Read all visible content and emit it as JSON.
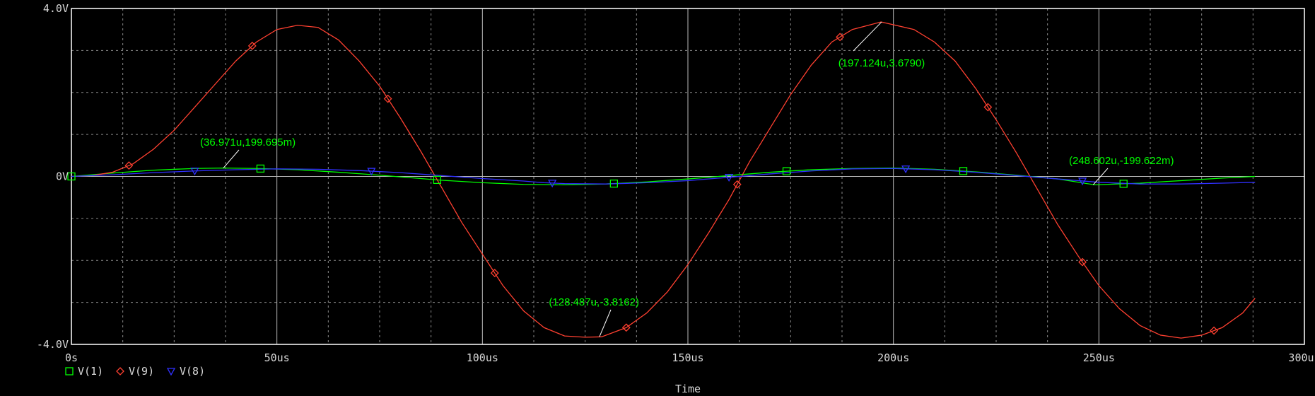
{
  "chart_data": {
    "type": "line",
    "title": "",
    "xlabel": "Time",
    "ylabel": "",
    "xlim": [
      0,
      300
    ],
    "ylim": [
      -4,
      4
    ],
    "x_unit": "us",
    "y_unit": "V",
    "x_ticks": [
      "0s",
      "50us",
      "100us",
      "150us",
      "200us",
      "250us",
      "300us"
    ],
    "y_ticks": [
      "4.0V",
      "0V",
      "-4.0V"
    ],
    "grid": true,
    "grid_style": "dotted",
    "legend_position": "bottom-left",
    "background": "#000000",
    "axis_color": "#ffffff",
    "series": [
      {
        "name": "V(1)",
        "color": "#00ff00",
        "marker": "square",
        "x": [
          0,
          10,
          20,
          30,
          37,
          45,
          55,
          65,
          75,
          85,
          90,
          100,
          110,
          120,
          130,
          140,
          150,
          160,
          170,
          180,
          190,
          200,
          210,
          220,
          230,
          240,
          249,
          260,
          270,
          280,
          288
        ],
        "y": [
          0,
          0.08,
          0.15,
          0.19,
          0.2,
          0.19,
          0.16,
          0.1,
          0.03,
          -0.05,
          -0.09,
          -0.15,
          -0.19,
          -0.2,
          -0.18,
          -0.13,
          -0.06,
          0.02,
          0.1,
          0.16,
          0.19,
          0.2,
          0.17,
          0.11,
          0.03,
          -0.06,
          -0.2,
          -0.16,
          -0.1,
          -0.04,
          0
        ],
        "marker_x": [
          0,
          46,
          89,
          132,
          174,
          217,
          256
        ]
      },
      {
        "name": "V(9)",
        "color": "#ff4030",
        "marker": "diamond",
        "x": [
          0,
          5,
          10,
          15,
          20,
          25,
          30,
          35,
          40,
          45,
          50,
          55,
          60,
          65,
          70,
          75,
          80,
          85,
          90,
          95,
          100,
          105,
          110,
          115,
          120,
          125,
          129,
          135,
          140,
          145,
          150,
          155,
          160,
          165,
          170,
          175,
          180,
          185,
          190,
          197,
          205,
          210,
          215,
          220,
          225,
          230,
          235,
          240,
          245,
          250,
          255,
          260,
          265,
          270,
          275,
          280,
          285,
          288
        ],
        "y": [
          0,
          0.02,
          0.1,
          0.3,
          0.65,
          1.1,
          1.65,
          2.2,
          2.75,
          3.2,
          3.5,
          3.6,
          3.55,
          3.25,
          2.75,
          2.15,
          1.4,
          0.6,
          -0.25,
          -1.1,
          -1.85,
          -2.6,
          -3.2,
          -3.6,
          -3.8,
          -3.83,
          -3.82,
          -3.6,
          -3.25,
          -2.75,
          -2.1,
          -1.35,
          -0.55,
          0.35,
          1.15,
          1.95,
          2.65,
          3.2,
          3.5,
          3.68,
          3.5,
          3.2,
          2.75,
          2.1,
          1.35,
          0.55,
          -0.3,
          -1.15,
          -1.9,
          -2.6,
          -3.15,
          -3.55,
          -3.78,
          -3.85,
          -3.78,
          -3.6,
          -3.25,
          -2.9
        ],
        "marker_x": [
          14,
          44,
          77,
          103,
          135,
          162,
          187,
          223,
          246,
          278
        ]
      },
      {
        "name": "V(8)",
        "color": "#3030ff",
        "marker": "triangle-down",
        "x": [
          0,
          10,
          20,
          30,
          40,
          50,
          60,
          70,
          80,
          90,
          100,
          110,
          115,
          120,
          130,
          140,
          150,
          160,
          170,
          180,
          190,
          200,
          210,
          220,
          230,
          240,
          245,
          250,
          260,
          270,
          280,
          288
        ],
        "y": [
          0,
          0.04,
          0.09,
          0.13,
          0.16,
          0.18,
          0.17,
          0.14,
          0.09,
          0.02,
          -0.05,
          -0.11,
          -0.15,
          -0.17,
          -0.18,
          -0.15,
          -0.1,
          -0.02,
          0.06,
          0.13,
          0.18,
          0.19,
          0.16,
          0.1,
          0.02,
          -0.06,
          -0.1,
          -0.14,
          -0.18,
          -0.18,
          -0.16,
          -0.14
        ],
        "marker_x": [
          30,
          73,
          117,
          160,
          203,
          246
        ]
      }
    ],
    "annotations": [
      {
        "label": "(36.971u,199.695m)",
        "x": 36.971,
        "y": 0.199695
      },
      {
        "label": "(128.487u,-3.8162)",
        "x": 128.487,
        "y": -3.8162
      },
      {
        "label": "(197.124u,3.6790)",
        "x": 197.124,
        "y": 3.679
      },
      {
        "label": "(248.602u,-199.622m)",
        "x": 248.602,
        "y": -0.199622
      }
    ]
  }
}
